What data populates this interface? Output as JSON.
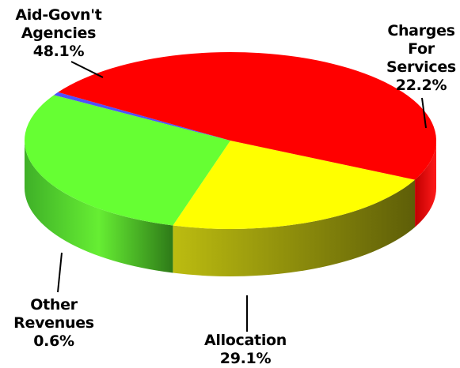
{
  "chart_data": {
    "type": "pie",
    "style": "3d",
    "slices": [
      {
        "label_lines": [
          "Charges",
          "For",
          "Services"
        ],
        "value": 22.2,
        "value_label": "22.2%",
        "color": "#ffff00",
        "side_color": "#8a8a10"
      },
      {
        "label_lines": [
          "Allocation"
        ],
        "value": 29.1,
        "value_label": "29.1%",
        "color": "#66ff33",
        "side_color": "#3aa820"
      },
      {
        "label_lines": [
          "Other",
          "Revenues"
        ],
        "value": 0.6,
        "value_label": "0.6%",
        "color": "#5050ff",
        "side_color": "#3030c0"
      },
      {
        "label_lines": [
          "Aid-Govn't",
          "Agencies"
        ],
        "value": 48.1,
        "value_label": "48.1%",
        "color": "#ff0000",
        "side_color": "#b00000"
      }
    ],
    "legend": "none",
    "label_placement": "outside-with-leaders"
  }
}
